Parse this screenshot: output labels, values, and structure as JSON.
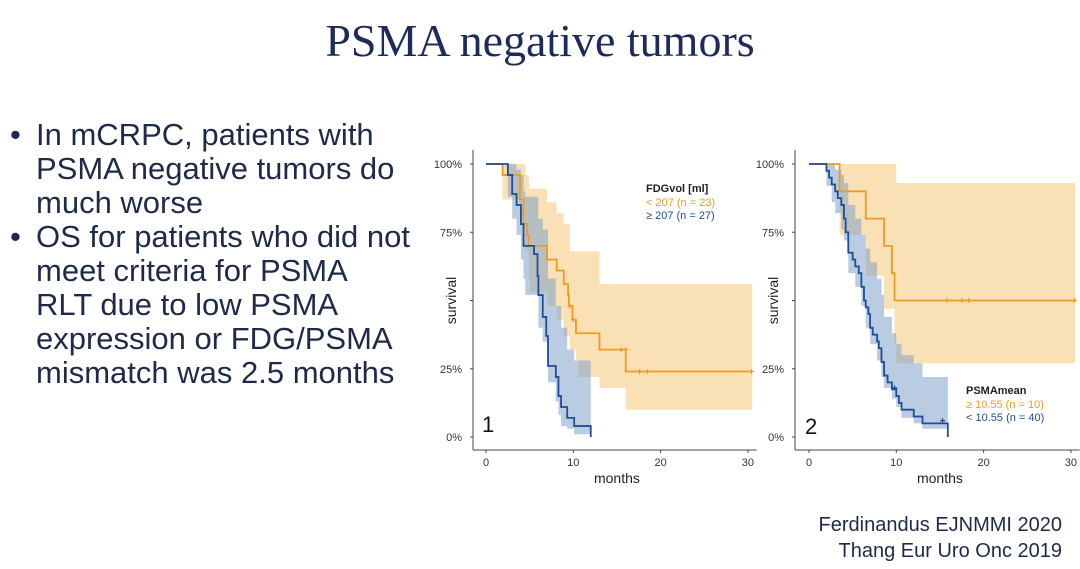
{
  "title": "PSMA negative tumors",
  "bullets": [
    "In mCRPC, patients with PSMA negative tumors do much worse",
    "OS for patients who did not meet criteria for PSMA RLT due to low PSMA expression or FDG/PSMA mismatch was 2.5 months"
  ],
  "citations": [
    "Ferdinandus EJNMMI 2020",
    "Thang Eur Uro Onc 2019"
  ],
  "colors": {
    "orange": "#f29a1f",
    "blue": "#1f4e96",
    "orange_ci": "#f6c878",
    "blue_ci": "#7fa2c8"
  },
  "chart_data": [
    {
      "type": "line",
      "subtype": "kaplan-meier step",
      "panel_label": "1",
      "xlabel": "months",
      "ylabel": "survival",
      "xlim": [
        0,
        31
      ],
      "ylim": [
        0,
        100
      ],
      "xticks": [
        "0",
        "10",
        "20",
        "30"
      ],
      "yticks": [
        {
          "value": 100,
          "label": "100%"
        },
        {
          "value": 75,
          "label": "75%"
        },
        {
          "value": 25,
          "label": "25%"
        },
        {
          "value": 0,
          "label": "0%"
        }
      ],
      "legend_title": "FDGvol [ml]",
      "legend_position": "top-right",
      "series": [
        {
          "name": "< 207 (n = 23)",
          "color": "orange",
          "steps": [
            [
              0,
              100
            ],
            [
              1.9,
              96
            ],
            [
              3.9,
              87
            ],
            [
              4.3,
              78
            ],
            [
              4.7,
              74
            ],
            [
              4.9,
              70
            ],
            [
              7,
              65
            ],
            [
              8.1,
              61
            ],
            [
              8.9,
              56
            ],
            [
              9.4,
              52
            ],
            [
              9.5,
              48
            ],
            [
              9.9,
              43
            ],
            [
              10.3,
              38
            ],
            [
              13,
              32
            ],
            [
              16,
              24
            ],
            [
              30.5,
              24
            ]
          ],
          "censored": [
            [
              9.6,
              48
            ],
            [
              10,
              43
            ],
            [
              15.5,
              32
            ],
            [
              16,
              32
            ],
            [
              17.6,
              24
            ],
            [
              18.5,
              24
            ],
            [
              30.4,
              24
            ]
          ],
          "ci": [
            [
              1.9,
              87,
              100
            ],
            [
              3.9,
              80,
              100
            ],
            [
              4.5,
              68,
              96
            ],
            [
              4.9,
              58,
              93
            ],
            [
              5,
              53,
              91
            ],
            [
              7,
              48,
              86
            ],
            [
              8.1,
              43,
              82
            ],
            [
              8.9,
              37,
              78
            ],
            [
              9.6,
              32,
              68
            ],
            [
              10.3,
              28,
              68
            ],
            [
              10.6,
              22,
              68
            ],
            [
              13,
              18,
              56
            ],
            [
              16,
              10,
              56
            ],
            [
              30.5,
              10,
              56
            ]
          ]
        },
        {
          "name": "≥ 207 (n = 27)",
          "color": "blue",
          "steps": [
            [
              0,
              100
            ],
            [
              2.5,
              96
            ],
            [
              3,
              89
            ],
            [
              3.5,
              85
            ],
            [
              4,
              78
            ],
            [
              4.3,
              70
            ],
            [
              5.5,
              67
            ],
            [
              5.9,
              59
            ],
            [
              6,
              52
            ],
            [
              6.5,
              44
            ],
            [
              6.9,
              37
            ],
            [
              7.1,
              26
            ],
            [
              8,
              22
            ],
            [
              8.3,
              15
            ],
            [
              8.6,
              11
            ],
            [
              9.3,
              7
            ],
            [
              10.1,
              4
            ],
            [
              12,
              0
            ]
          ],
          "censored": [],
          "ci": [
            [
              2.5,
              88,
              100
            ],
            [
              3,
              80,
              100
            ],
            [
              3.5,
              74,
              98
            ],
            [
              4,
              65,
              96
            ],
            [
              4.3,
              58,
              90
            ],
            [
              4.5,
              52,
              88
            ],
            [
              6,
              40,
              80
            ],
            [
              6.5,
              35,
              76
            ],
            [
              7.1,
              20,
              58
            ],
            [
              8,
              13,
              48
            ],
            [
              8.3,
              8,
              48
            ],
            [
              8.6,
              4,
              40
            ],
            [
              9.3,
              3,
              32
            ],
            [
              10.1,
              1,
              28
            ],
            [
              12,
              0,
              28
            ]
          ]
        }
      ]
    },
    {
      "type": "line",
      "subtype": "kaplan-meier step",
      "panel_label": "2",
      "xlabel": "months",
      "ylabel": "survival",
      "xlim": [
        0,
        31
      ],
      "ylim": [
        0,
        100
      ],
      "xticks": [
        "0",
        "10",
        "20",
        "30"
      ],
      "yticks": [
        {
          "value": 100,
          "label": "100%"
        },
        {
          "value": 75,
          "label": "75%"
        },
        {
          "value": 25,
          "label": "25%"
        },
        {
          "value": 0,
          "label": "0%"
        }
      ],
      "legend_title": "PSMAmean",
      "legend_position": "bottom-right",
      "series": [
        {
          "name": "≥ 10.55 (n = 10)",
          "color": "orange",
          "steps": [
            [
              0,
              100
            ],
            [
              3.5,
              90
            ],
            [
              6.5,
              80
            ],
            [
              8.6,
              70
            ],
            [
              9.5,
              60
            ],
            [
              9.8,
              50
            ],
            [
              30.5,
              50
            ]
          ],
          "censored": [
            [
              15.8,
              50
            ],
            [
              17.5,
              50
            ],
            [
              18.3,
              50
            ],
            [
              30.4,
              50
            ]
          ],
          "ci": [
            [
              3.5,
              74,
              100
            ],
            [
              6.5,
              59,
              100
            ],
            [
              8.6,
              47,
              100
            ],
            [
              9.8,
              34,
              100
            ],
            [
              10,
              27,
              93
            ],
            [
              30.5,
              27,
              93
            ]
          ]
        },
        {
          "name": "< 10.55 (n = 40)",
          "color": "blue",
          "steps": [
            [
              0,
              100
            ],
            [
              2,
              97.5
            ],
            [
              2.3,
              95
            ],
            [
              2.6,
              92.5
            ],
            [
              3,
              90
            ],
            [
              3.3,
              87.5
            ],
            [
              3.7,
              85
            ],
            [
              4,
              80
            ],
            [
              4.2,
              75
            ],
            [
              4.5,
              67.5
            ],
            [
              5,
              65
            ],
            [
              5.3,
              62.5
            ],
            [
              5.7,
              60
            ],
            [
              6,
              55
            ],
            [
              6.3,
              50
            ],
            [
              6.5,
              47.5
            ],
            [
              6.8,
              45
            ],
            [
              7,
              40
            ],
            [
              7.3,
              37.5
            ],
            [
              7.8,
              35
            ],
            [
              8,
              32.5
            ],
            [
              8.3,
              27.5
            ],
            [
              8.6,
              22.5
            ],
            [
              9,
              20
            ],
            [
              9.5,
              17.5
            ],
            [
              10,
              15
            ],
            [
              10.3,
              12.5
            ],
            [
              10.6,
              10
            ],
            [
              12,
              7.5
            ],
            [
              13,
              5
            ],
            [
              15.9,
              0
            ]
          ],
          "censored": [
            [
              9.8,
              18
            ],
            [
              15.3,
              6
            ]
          ],
          "ci": [
            [
              2,
              92,
              100
            ],
            [
              2.6,
              86,
              100
            ],
            [
              3,
              82,
              98
            ],
            [
              3.7,
              76,
              96
            ],
            [
              4,
              72,
              93
            ],
            [
              4.5,
              60,
              85
            ],
            [
              5.3,
              55,
              80
            ],
            [
              6,
              48,
              74
            ],
            [
              6.5,
              40,
              69
            ],
            [
              7,
              34,
              64
            ],
            [
              7.8,
              28,
              58
            ],
            [
              8.3,
              22,
              52
            ],
            [
              8.6,
              18,
              44
            ],
            [
              9.5,
              14,
              38
            ],
            [
              10,
              11,
              34
            ],
            [
              10.6,
              7,
              30
            ],
            [
              12,
              5,
              27
            ],
            [
              13,
              3,
              22
            ],
            [
              15.9,
              3,
              22
            ]
          ]
        }
      ]
    }
  ]
}
